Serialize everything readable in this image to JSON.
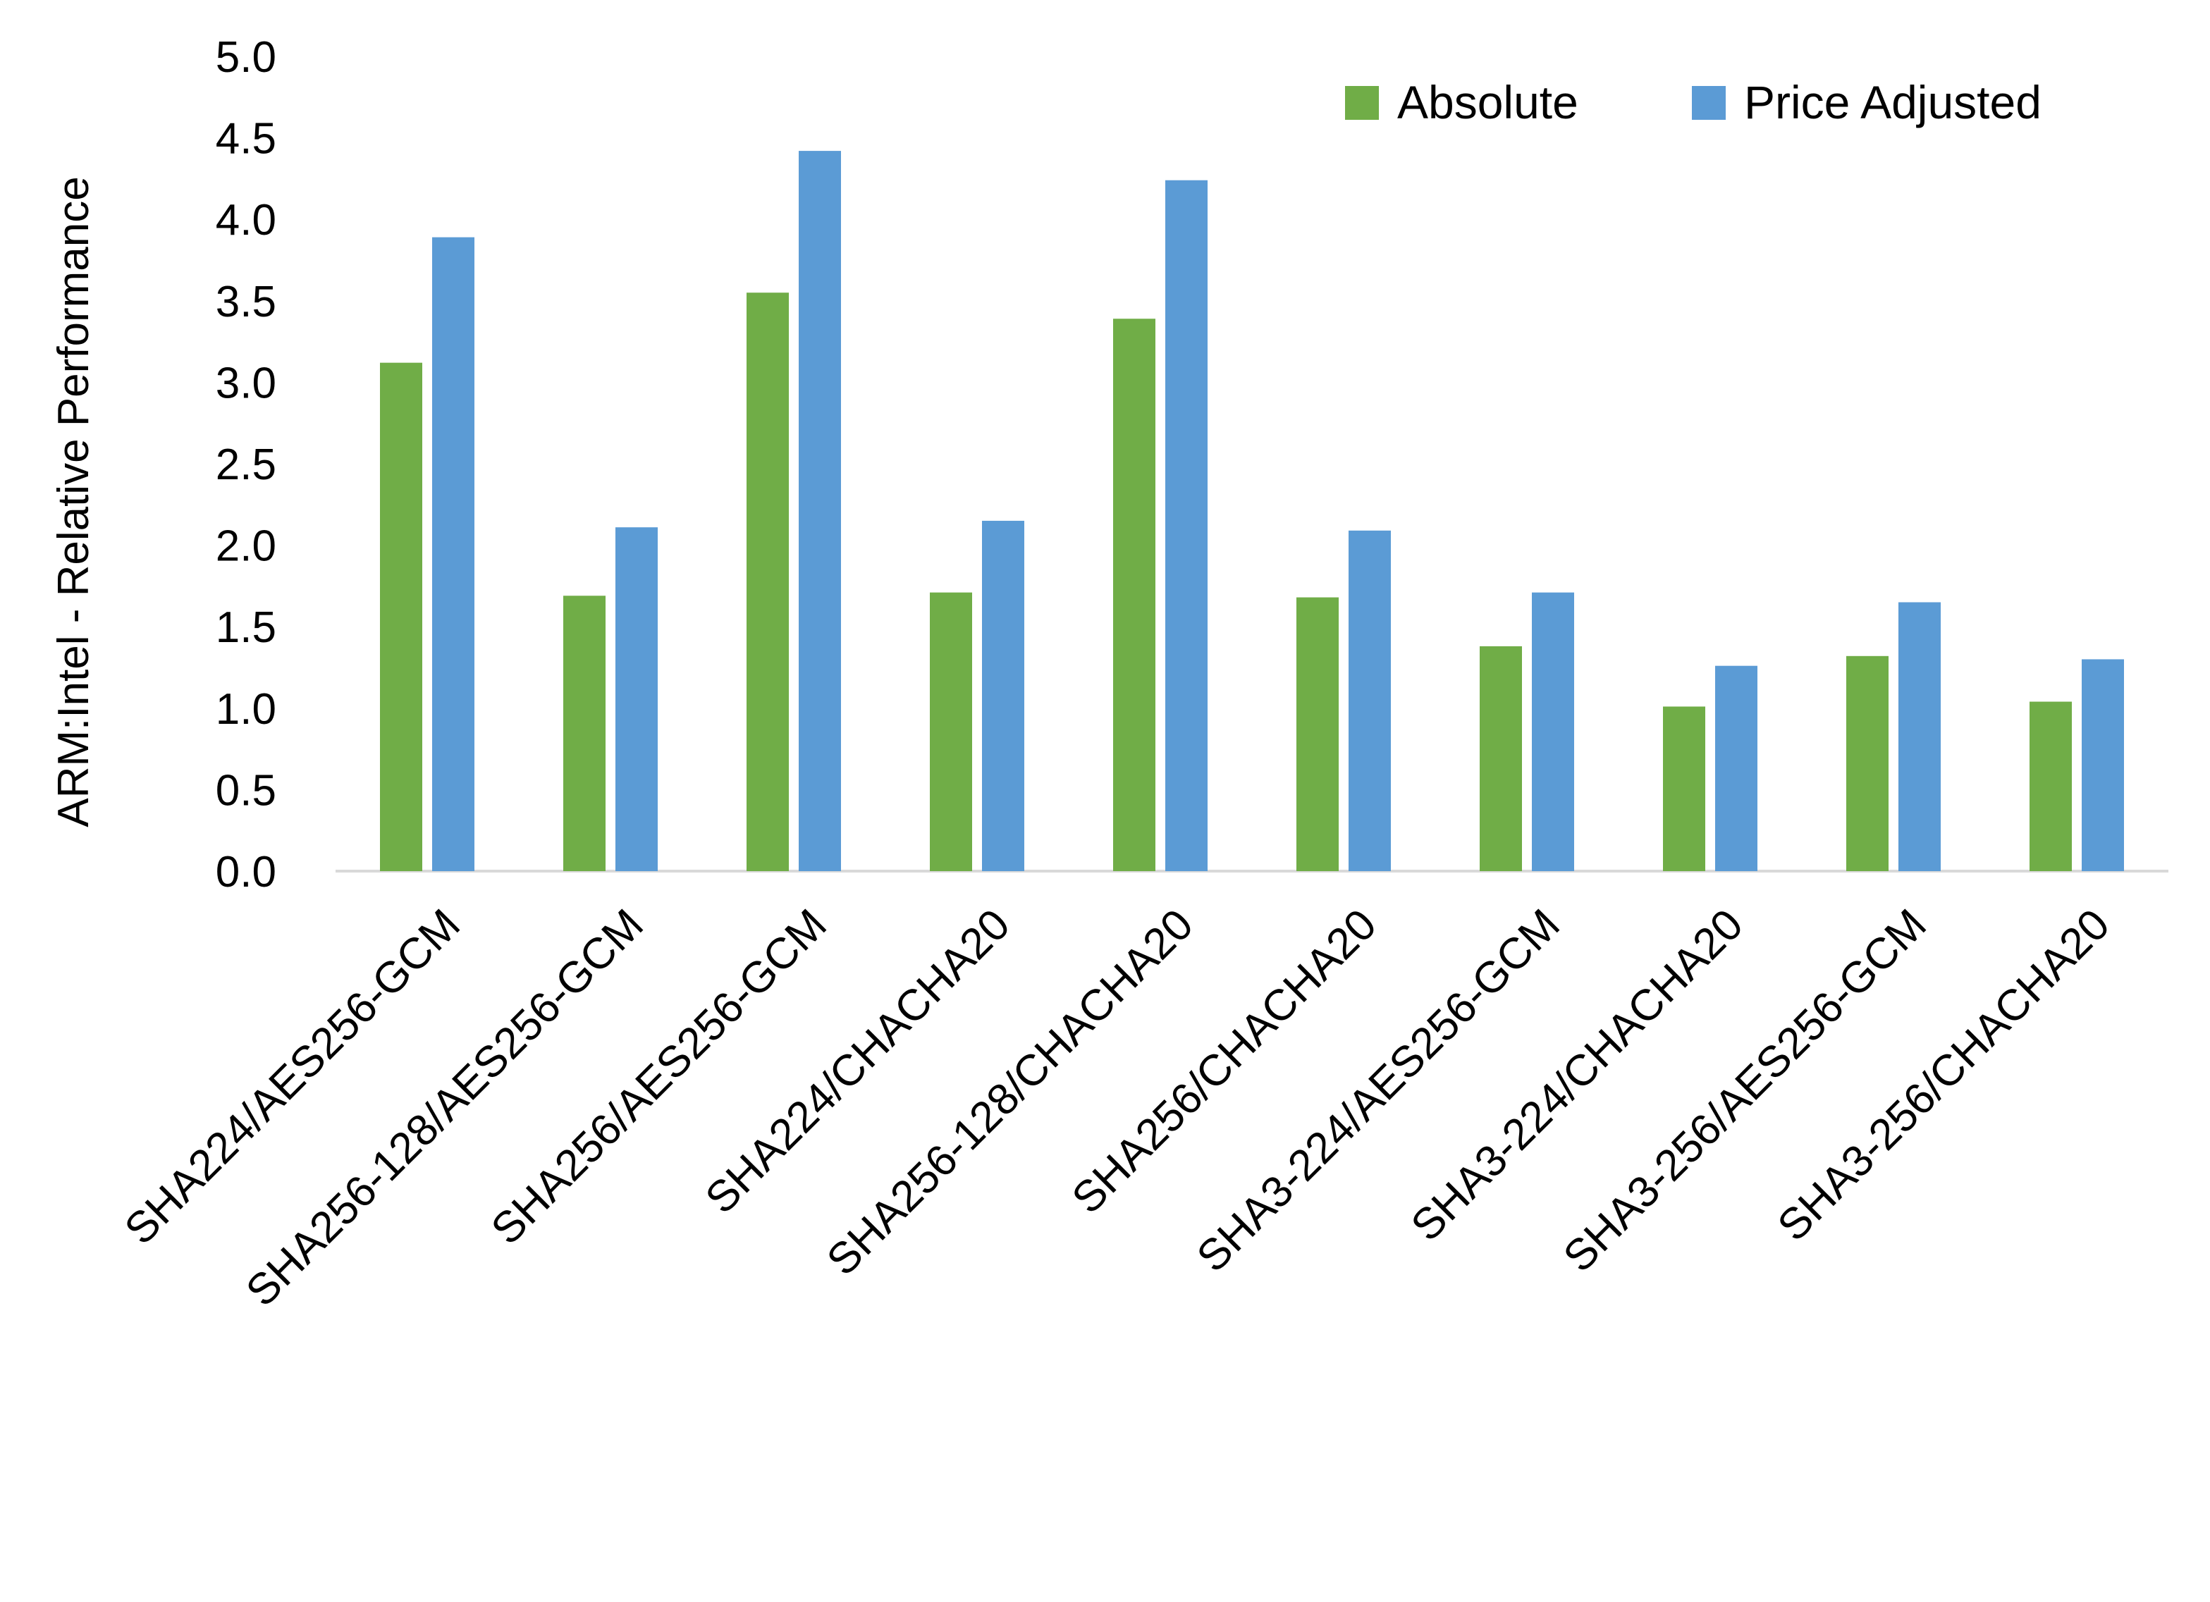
{
  "chart_data": {
    "type": "bar",
    "title": "",
    "xlabel": "",
    "ylabel": "ARM:Intel - Relative Performance",
    "ylim": [
      0,
      5
    ],
    "yticks": [
      "0.0",
      "0.5",
      "1.0",
      "1.5",
      "2.0",
      "2.5",
      "3.0",
      "3.5",
      "4.0",
      "4.5",
      "5.0"
    ],
    "grid": false,
    "legend_position": "top-right",
    "categories": [
      "SHA224/AES256-GCM",
      "SHA256-128/AES256-GCM",
      "SHA256/AES256-GCM",
      "SHA224/CHACHA20",
      "SHA256-128/CHACHA20",
      "SHA256/CHACHA20",
      "SHA3-224/AES256-GCM",
      "SHA3-224/CHACHA20",
      "SHA3-256/AES256-GCM",
      "SHA3-256/CHACHA20"
    ],
    "series": [
      {
        "name": "Absolute",
        "color": "#70AD47",
        "values": [
          3.12,
          1.69,
          3.55,
          1.71,
          3.39,
          1.68,
          1.38,
          1.01,
          1.32,
          1.04
        ]
      },
      {
        "name": "Price Adjusted",
        "color": "#5B9BD5",
        "values": [
          3.89,
          2.11,
          4.42,
          2.15,
          4.24,
          2.09,
          1.71,
          1.26,
          1.65,
          1.3
        ]
      }
    ]
  }
}
